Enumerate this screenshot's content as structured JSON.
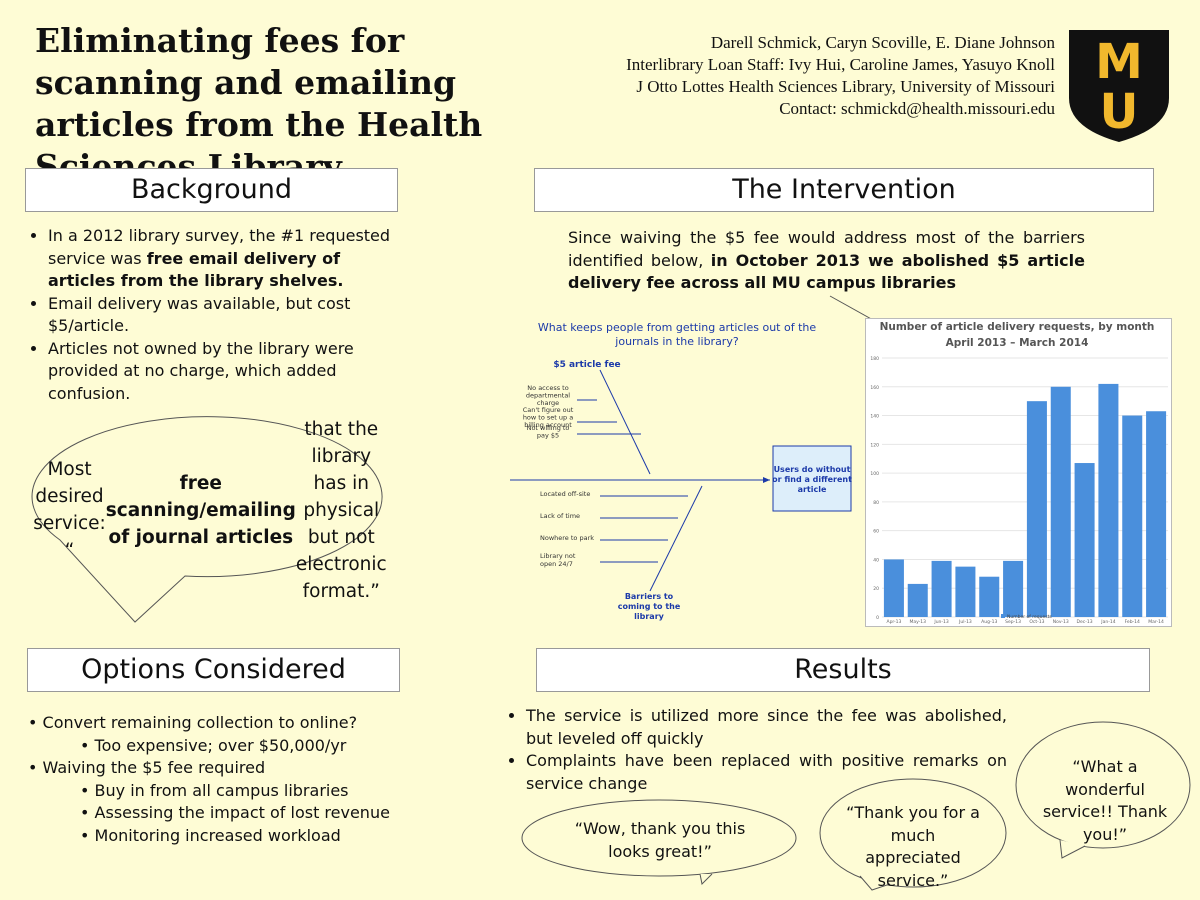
{
  "header": {
    "title": "Eliminating fees for scanning and emailing articles from the Health Sciences Library",
    "authors": [
      "Darell Schmick, Caryn Scoville, E. Diane Johnson",
      "Interlibrary Loan Staff: Ivy Hui, Caroline James, Yasuyo Knoll",
      "J Otto Lottes Health Sciences Library, University of Missouri",
      "Contact: schmickd@health.missouri.edu"
    ],
    "logo": [
      "M",
      "U"
    ]
  },
  "background": {
    "heading": "Background",
    "bullets": [
      [
        {
          "text": "In a 2012 library survey, the #1 requested service was "
        },
        {
          "text": "free email delivery of articles from the library shelves.",
          "bold": true
        }
      ],
      [
        {
          "text": "Email delivery  was available, but  cost $5/article."
        }
      ],
      [
        {
          "text": "Articles not owned by the library were provided at no charge, which added confusion."
        }
      ]
    ],
    "bubble": [
      {
        "text": "Most desired service: “"
      },
      {
        "text": "free scanning/emailing of journal articles",
        "bold": true
      },
      {
        "text": " that the library has in physical but not electronic format.”"
      }
    ]
  },
  "intervention": {
    "heading": "The Intervention",
    "text": [
      {
        "text": "Since waiving the $5 fee would address most of the barriers identified below, "
      },
      {
        "text": "in October 2013 we abolished $5 article delivery fee across all MU campus libraries",
        "bold": true
      }
    ],
    "fishbone": {
      "question": [
        "What keeps people from getting articles out of the",
        "journals in the library?"
      ],
      "head": [
        "Users do without",
        "or find a different",
        "article"
      ],
      "top_bone": "$5 article fee",
      "top_causes": [
        [
          "No access to",
          "departmental",
          "charge"
        ],
        [
          "Can't figure out",
          "how to set up a",
          "billing account"
        ],
        [
          "Not willing to",
          "pay $5"
        ]
      ],
      "bottom_bone": [
        "Barriers to",
        "coming to the",
        "library"
      ],
      "bottom_causes": [
        [
          "Located off-site"
        ],
        [
          "Lack of time"
        ],
        [
          "Nowhere to park"
        ],
        [
          "Library not",
          "open 24/7"
        ]
      ]
    }
  },
  "chart_data": {
    "type": "bar",
    "title": "Number of article delivery requests, by month",
    "subtitle": "April 2013 – March 2014",
    "categories": [
      "Apr-13",
      "May-13",
      "Jun-13",
      "Jul-13",
      "Aug-13",
      "Sep-13",
      "Oct-13",
      "Nov-13",
      "Dec-13",
      "Jan-14",
      "Feb-14",
      "Mar-14"
    ],
    "series": [
      {
        "name": "Number of requests",
        "color": "#4a8fdc",
        "values": [
          40,
          23,
          39,
          35,
          28,
          39,
          150,
          160,
          107,
          162,
          140,
          143
        ]
      }
    ],
    "ylim": [
      0,
      180
    ],
    "yticks": [
      0,
      20,
      40,
      60,
      80,
      100,
      120,
      140,
      160,
      180
    ],
    "grid": true
  },
  "options": {
    "heading": "Options Considered",
    "items": [
      {
        "text": "Convert remaining collection to online?",
        "level": 0
      },
      {
        "text": "Too expensive; over  $50,000/yr",
        "level": 1
      },
      {
        "text": "Waiving the $5 fee required",
        "level": 0
      },
      {
        "text": "Buy in from all campus libraries",
        "level": 1
      },
      {
        "text": "Assessing the impact of lost revenue",
        "level": 1
      },
      {
        "text": "Monitoring increased workload",
        "level": 1
      }
    ]
  },
  "results": {
    "heading": "Results",
    "bullets": [
      "The service is utilized more since the fee was abolished, but leveled off quickly",
      "Complaints have been replaced with positive remarks on service change"
    ],
    "quotes": [
      "“Wow, thank you this looks great!”",
      "“Thank you for a much appreciated service.”",
      "“What a wonderful service!!  Thank you!”"
    ]
  }
}
